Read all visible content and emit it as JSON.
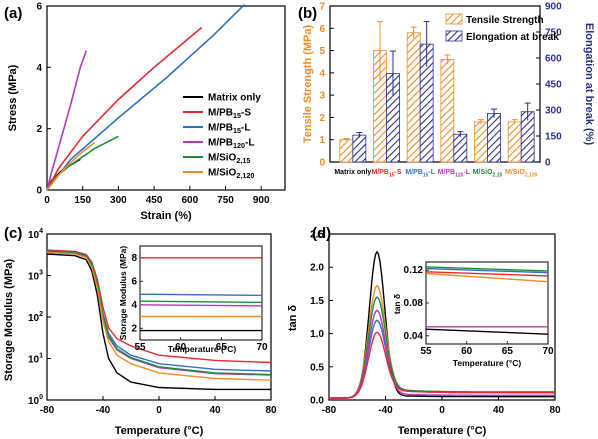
{
  "chart_data": [
    {
      "panel": "(a)",
      "type": "line",
      "xlabel": "Strain (%)",
      "ylabel": "Stress (MPa)",
      "xlim": [
        0,
        1000
      ],
      "ylim": [
        0,
        6
      ],
      "xticks": [
        "0",
        "150",
        "300",
        "450",
        "600",
        "750",
        "900"
      ],
      "xtick_values": [
        0,
        150,
        300,
        450,
        600,
        750,
        900
      ],
      "yticks": [
        "0",
        "2",
        "4",
        "6"
      ],
      "ytick_values": [
        0,
        2,
        4,
        6
      ],
      "legend_position": "right",
      "series": [
        {
          "name": "Matrix only",
          "color": "#000000",
          "x": [
            0,
            20,
            60,
            100,
            140
          ],
          "y": [
            0,
            0.32,
            0.62,
            0.82,
            1.0
          ]
        },
        {
          "name": "M/PB15-S",
          "color": "#e8282d",
          "x": [
            0,
            50,
            150,
            300,
            450,
            650
          ],
          "y": [
            0,
            0.72,
            1.75,
            2.95,
            4.0,
            5.3
          ]
        },
        {
          "name": "M/PB15-L",
          "color": "#2e70c6",
          "x": [
            0,
            100,
            300,
            500,
            700,
            830
          ],
          "y": [
            0,
            1.0,
            2.35,
            3.65,
            5.05,
            6.05
          ]
        },
        {
          "name": "M/PB120-L",
          "color": "#b03cb8",
          "x": [
            0,
            20,
            60,
            100,
            140,
            165
          ],
          "y": [
            0,
            0.6,
            1.7,
            2.8,
            4.0,
            4.55
          ]
        },
        {
          "name": "M/SiO2,15",
          "color": "#1e8c3a",
          "x": [
            0,
            40,
            100,
            200,
            300
          ],
          "y": [
            0,
            0.45,
            0.82,
            1.35,
            1.75
          ]
        },
        {
          "name": "M/SiO2,120",
          "color": "#f08c28",
          "x": [
            0,
            50,
            100,
            150,
            200
          ],
          "y": [
            0,
            0.5,
            0.9,
            1.25,
            1.55
          ]
        }
      ]
    },
    {
      "panel": "(b)",
      "type": "bar",
      "ylabel": "Tensile Strength (MPa)",
      "y2label": "Elongation at break (%)",
      "ylim": [
        0,
        7
      ],
      "y2lim": [
        0,
        900
      ],
      "yticks": [
        "0",
        "1",
        "2",
        "3",
        "4",
        "5",
        "6",
        "7"
      ],
      "ytick_values": [
        0,
        1,
        2,
        3,
        4,
        5,
        6,
        7
      ],
      "y2ticks": [
        "0",
        "150",
        "300",
        "450",
        "600",
        "750",
        "900"
      ],
      "y2tick_values": [
        0,
        150,
        300,
        450,
        600,
        750,
        900
      ],
      "legend_position": "top-right",
      "categories": [
        "Matrix only",
        "M/PB15-S",
        "M/PB15-L",
        "M/PB120-L",
        "M/SiO2,15",
        "M/SiO2,120"
      ],
      "category_colors": [
        "#000000",
        "#e8282d",
        "#2e70c6",
        "#b03cb8",
        "#1e8c3a",
        "#f08c28"
      ],
      "series": [
        {
          "name": "Tensile Strength",
          "axis": "left",
          "color": "#f08c28",
          "values": [
            1.0,
            5.0,
            5.8,
            4.6,
            1.8,
            1.8
          ],
          "errors": [
            0.05,
            1.3,
            0.25,
            0.2,
            0.1,
            0.1
          ]
        },
        {
          "name": "Elongation at break",
          "axis": "right",
          "color": "#2a2f8c",
          "values": [
            155,
            510,
            680,
            160,
            280,
            290
          ],
          "errors": [
            15,
            130,
            130,
            15,
            25,
            50
          ]
        }
      ]
    },
    {
      "panel": "(c)",
      "type": "line",
      "xlabel": "Temperature (°C)",
      "ylabel": "Storage Modulus (MPa)",
      "xlim": [
        -80,
        80
      ],
      "ylim_log10": [
        0,
        4
      ],
      "scale_y": "log",
      "xticks": [
        "-80",
        "-40",
        "0",
        "40",
        "80"
      ],
      "xtick_values": [
        -80,
        -40,
        0,
        40,
        80
      ],
      "yticks": [
        {
          "base": "10",
          "exp": "0"
        },
        {
          "base": "10",
          "exp": "1"
        },
        {
          "base": "10",
          "exp": "2"
        },
        {
          "base": "10",
          "exp": "3"
        },
        {
          "base": "10",
          "exp": "4"
        }
      ],
      "ytick_values": [
        1,
        10,
        100,
        1000,
        10000
      ],
      "series": [
        {
          "name": "Matrix only",
          "color": "#000000",
          "x": [
            -80,
            -60,
            -52,
            -48,
            -44,
            -40,
            -36,
            -30,
            -20,
            0,
            40,
            80
          ],
          "y": [
            3300,
            3000,
            2400,
            1300,
            330,
            40,
            10,
            4.5,
            2.7,
            2.0,
            1.8,
            1.8
          ]
        },
        {
          "name": "M/PB15-S",
          "color": "#e8282d",
          "x": [
            -80,
            -60,
            -52,
            -48,
            -44,
            -40,
            -36,
            -30,
            -20,
            0,
            40,
            80
          ],
          "y": [
            4100,
            3800,
            3200,
            2100,
            800,
            170,
            55,
            30,
            20,
            12,
            9,
            8
          ]
        },
        {
          "name": "M/PB15-L",
          "color": "#2e70c6",
          "x": [
            -80,
            -60,
            -52,
            -48,
            -44,
            -40,
            -36,
            -30,
            -20,
            0,
            40,
            80
          ],
          "y": [
            3900,
            3600,
            3000,
            1900,
            650,
            120,
            40,
            20,
            12,
            7.5,
            5.5,
            5
          ]
        },
        {
          "name": "M/PB120-L",
          "color": "#b03cb8",
          "x": [
            -80,
            -60,
            -52,
            -48,
            -44,
            -40,
            -36,
            -30,
            -20,
            0,
            40,
            80
          ],
          "y": [
            3700,
            3400,
            2800,
            1700,
            550,
            95,
            32,
            16,
            10,
            6,
            4.3,
            4
          ]
        },
        {
          "name": "M/SiO2,15",
          "color": "#1e8c3a",
          "x": [
            -80,
            -60,
            -52,
            -48,
            -44,
            -40,
            -36,
            -30,
            -20,
            0,
            40,
            80
          ],
          "y": [
            3800,
            3500,
            2900,
            1800,
            600,
            105,
            35,
            17,
            10.5,
            6.3,
            4.5,
            4.1
          ]
        },
        {
          "name": "M/SiO2,120",
          "color": "#f08c28",
          "x": [
            -80,
            -60,
            -52,
            -48,
            -44,
            -40,
            -36,
            -30,
            -20,
            0,
            40,
            80
          ],
          "y": [
            3600,
            3300,
            2700,
            1600,
            500,
            80,
            26,
            12,
            7.5,
            4.5,
            3.3,
            3
          ]
        }
      ],
      "inset": {
        "xlabel": "Temperature (°C)",
        "ylabel": "Storage Modulus (MPa)",
        "xlim": [
          55,
          70
        ],
        "ylim": [
          1,
          9
        ],
        "xticks": [
          "55",
          "60",
          "65",
          "70"
        ],
        "xtick_values": [
          55,
          60,
          65,
          70
        ],
        "yticks": [
          "2",
          "4",
          "6",
          "8"
        ],
        "ytick_values": [
          2,
          4,
          6,
          8
        ],
        "series": [
          {
            "name": "Matrix only",
            "color": "#000000",
            "x": [
              55,
              70
            ],
            "y": [
              1.8,
              1.8
            ]
          },
          {
            "name": "M/PB15-S",
            "color": "#e8282d",
            "x": [
              55,
              70
            ],
            "y": [
              8.0,
              8.0
            ]
          },
          {
            "name": "M/PB15-L",
            "color": "#2e70c6",
            "x": [
              55,
              70
            ],
            "y": [
              4.9,
              4.8
            ]
          },
          {
            "name": "M/PB120-L",
            "color": "#b03cb8",
            "x": [
              55,
              70
            ],
            "y": [
              4.0,
              3.9
            ]
          },
          {
            "name": "M/SiO2,15",
            "color": "#1e8c3a",
            "x": [
              55,
              70
            ],
            "y": [
              4.3,
              4.2
            ]
          },
          {
            "name": "M/SiO2,120",
            "color": "#f08c28",
            "x": [
              55,
              70
            ],
            "y": [
              3.0,
              3.0
            ]
          }
        ]
      }
    },
    {
      "panel": "(d)",
      "type": "line",
      "xlabel": "Temperature (°C)",
      "ylabel": "tan δ",
      "xlim": [
        -80,
        80
      ],
      "ylim": [
        0,
        2.5
      ],
      "xticks": [
        "-80",
        "-40",
        "0",
        "40",
        "80"
      ],
      "xtick_values": [
        -80,
        -40,
        0,
        40,
        80
      ],
      "yticks": [
        "0.0",
        "0.5",
        "1.0",
        "1.5",
        "2.0",
        "2.5"
      ],
      "ytick_values": [
        0,
        0.5,
        1.0,
        1.5,
        2.0,
        2.5
      ],
      "series": [
        {
          "name": "Matrix only",
          "color": "#000000",
          "peak_x": -46,
          "peak_y": 2.23,
          "width": 5.5,
          "base_y": 0.05
        },
        {
          "name": "M/SiO2,120",
          "color": "#f08c28",
          "peak_x": -46,
          "peak_y": 1.72,
          "width": 6.0,
          "base_y": 0.12
        },
        {
          "name": "M/SiO2,15",
          "color": "#1e8c3a",
          "peak_x": -46,
          "peak_y": 1.55,
          "width": 6.0,
          "base_y": 0.12
        },
        {
          "name": "M/PB15-L",
          "color": "#2e70c6",
          "peak_x": -46,
          "peak_y": 1.2,
          "width": 6.0,
          "base_y": 0.11
        },
        {
          "name": "M/PB120-L",
          "color": "#b03cb8",
          "peak_x": -46,
          "peak_y": 1.35,
          "width": 6.0,
          "base_y": 0.07
        },
        {
          "name": "M/PB15-S",
          "color": "#e8282d",
          "peak_x": -46,
          "peak_y": 1.02,
          "width": 6.0,
          "base_y": 0.11
        }
      ],
      "inset": {
        "ylabel": "tan δ",
        "xlabel": "Temperature (°C)",
        "xlim": [
          55,
          70
        ],
        "ylim": [
          0.03,
          0.13
        ],
        "xticks": [
          "55",
          "60",
          "65",
          "70"
        ],
        "xtick_values": [
          55,
          60,
          65,
          70
        ],
        "yticks": [
          "0.04",
          "0.08",
          "0.12"
        ],
        "ytick_values": [
          0.04,
          0.08,
          0.12
        ],
        "series": [
          {
            "name": "Matrix only",
            "color": "#000000",
            "x": [
              55,
              70
            ],
            "y": [
              0.048,
              0.042
            ]
          },
          {
            "name": "M/PB15-S",
            "color": "#e8282d",
            "x": [
              55,
              70
            ],
            "y": [
              0.118,
              0.113
            ]
          },
          {
            "name": "M/PB15-L",
            "color": "#2e70c6",
            "x": [
              55,
              70
            ],
            "y": [
              0.122,
              0.117
            ]
          },
          {
            "name": "M/PB120-L",
            "color": "#b03cb8",
            "x": [
              55,
              70
            ],
            "y": [
              0.051,
              0.051
            ]
          },
          {
            "name": "M/SiO2,15",
            "color": "#1e8c3a",
            "x": [
              55,
              70
            ],
            "y": [
              0.124,
              0.119
            ]
          },
          {
            "name": "M/SiO2,120",
            "color": "#f08c28",
            "x": [
              55,
              70
            ],
            "y": [
              0.116,
              0.106
            ]
          }
        ]
      }
    }
  ],
  "legend_a": [
    {
      "main": "Matrix only",
      "sub": "",
      "suffix": "",
      "color": "#000000"
    },
    {
      "main": "M/PB",
      "sub": "15",
      "suffix": "-S",
      "color": "#e8282d"
    },
    {
      "main": "M/PB",
      "sub": "15",
      "suffix": "-L",
      "color": "#2e70c6"
    },
    {
      "main": "M/PB",
      "sub": "120",
      "suffix": "-L",
      "color": "#b03cb8"
    },
    {
      "main": "M/SiO",
      "sub": "2,15",
      "suffix": "",
      "color": "#1e8c3a"
    },
    {
      "main": "M/SiO",
      "sub": "2,120",
      "suffix": "",
      "color": "#f08c28"
    }
  ],
  "b_categories": [
    {
      "main": "Matrix only",
      "sub": "",
      "suffix": "",
      "color": "#000000"
    },
    {
      "main": "M/PB",
      "sub": "15",
      "suffix": "-S",
      "color": "#e8282d"
    },
    {
      "main": "M/PB",
      "sub": "15",
      "suffix": "-L",
      "color": "#2e70c6"
    },
    {
      "main": "M/PB",
      "sub": "120",
      "suffix": "-L",
      "color": "#b03cb8"
    },
    {
      "main": "M/SiO",
      "sub": "2,15",
      "suffix": "",
      "color": "#1e8c3a"
    },
    {
      "main": "M/SiO",
      "sub": "2,120",
      "suffix": "",
      "color": "#f08c28"
    }
  ],
  "colors": {
    "tensile_axis": "#f08c28",
    "elongation_axis": "#2a2f8c"
  }
}
